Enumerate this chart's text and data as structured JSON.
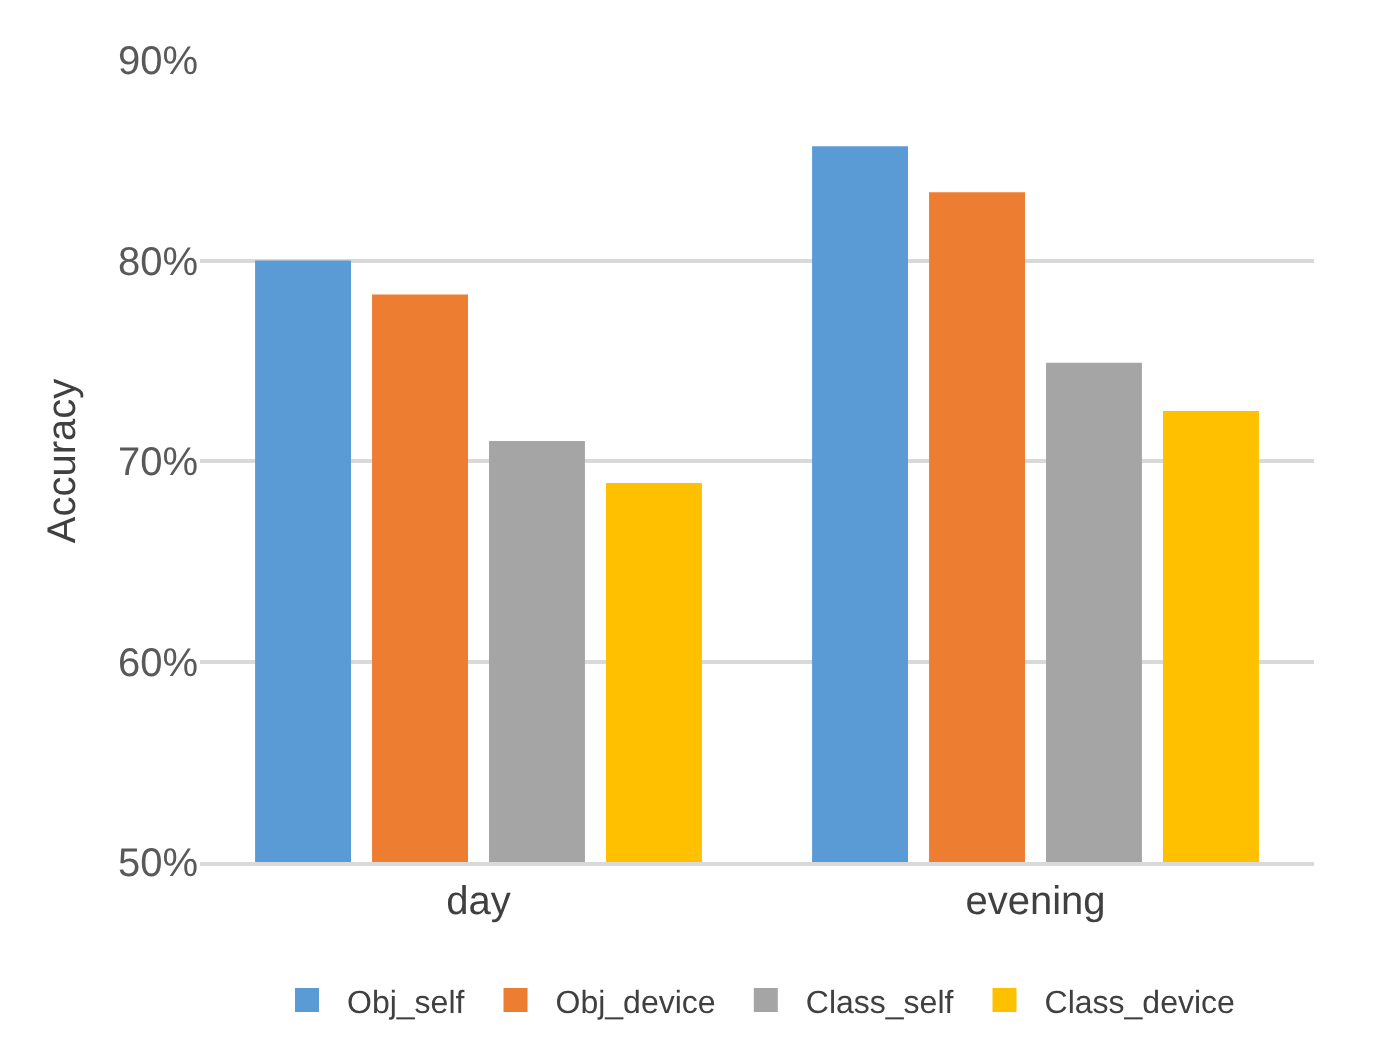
{
  "chart_data": {
    "type": "bar",
    "ylabel": "Accuracy",
    "categories": [
      "day",
      "evening"
    ],
    "series": [
      {
        "name": "Obj_self",
        "color": "#5b9bd5",
        "values": [
          80.0,
          85.7
        ]
      },
      {
        "name": "Obj_device",
        "color": "#ed7d31",
        "values": [
          78.3,
          83.4
        ]
      },
      {
        "name": "Class_self",
        "color": "#a5a5a5",
        "values": [
          71.0,
          74.9
        ]
      },
      {
        "name": "Class_device",
        "color": "#ffc000",
        "values": [
          68.9,
          72.5
        ]
      }
    ],
    "ylim": [
      50,
      90
    ],
    "yticks": [
      {
        "value": 50,
        "label": "50%"
      },
      {
        "value": 60,
        "label": "60%"
      },
      {
        "value": 70,
        "label": "70%"
      },
      {
        "value": 80,
        "label": "80%"
      },
      {
        "value": 90,
        "label": "90%"
      }
    ],
    "grid": "y",
    "legend": "bottom"
  }
}
